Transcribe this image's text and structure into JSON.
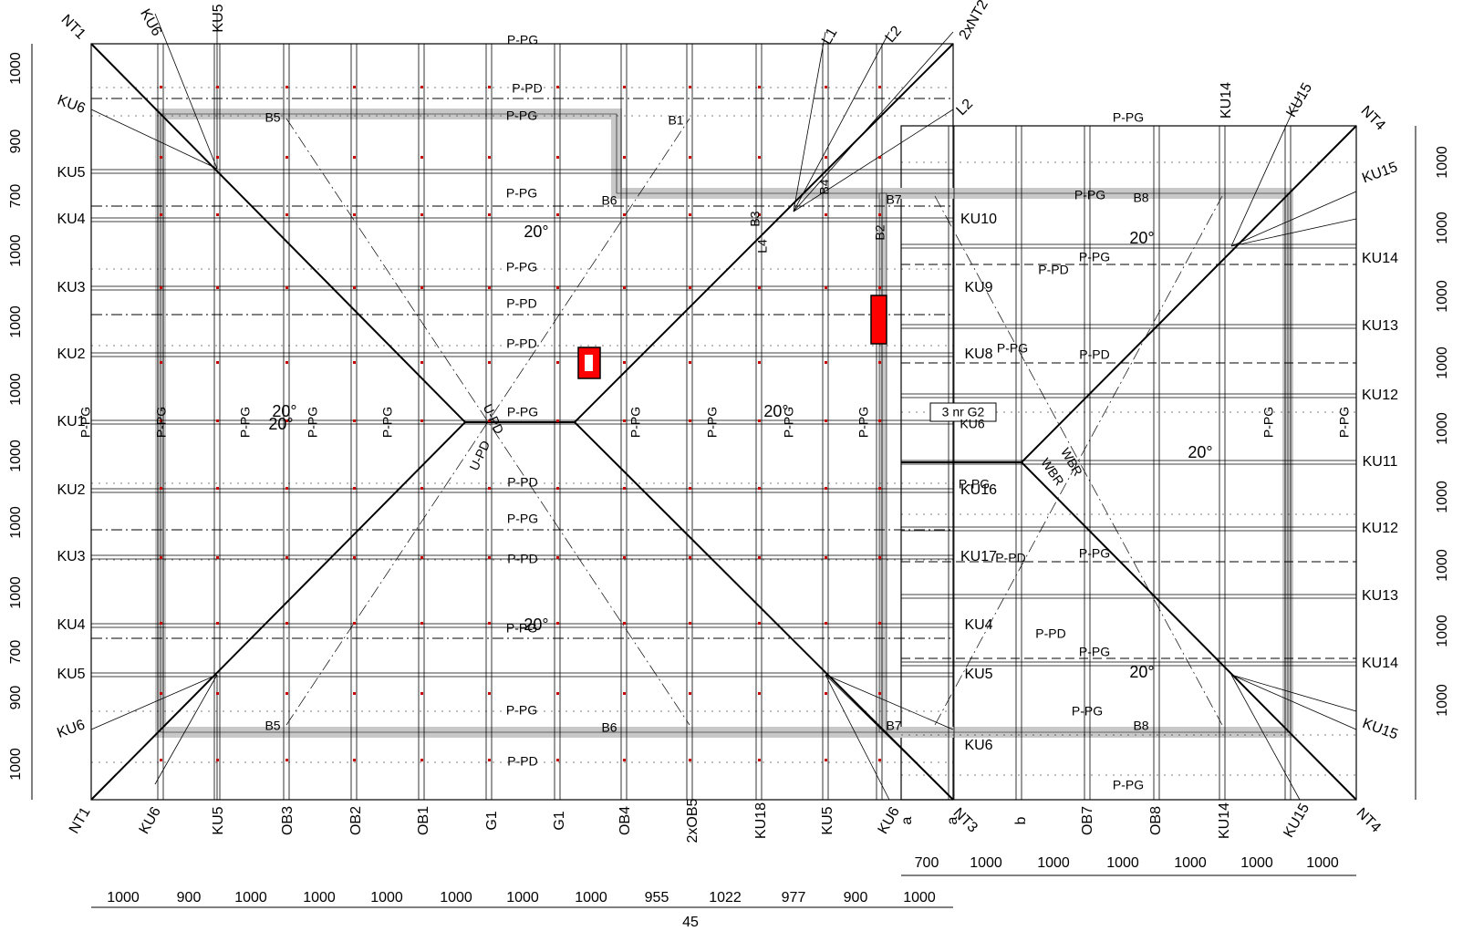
{
  "diagram": {
    "top_corner_labels": [
      "NT1",
      "KU6",
      "KU5",
      "L1",
      "L2",
      "2xNT2",
      "L2",
      "KU14",
      "KU15",
      "NT4"
    ],
    "left_side_labels": [
      "KU6",
      "KU5",
      "KU4",
      "KU3",
      "KU2",
      "KU1",
      "KU2",
      "KU3",
      "KU4",
      "KU5",
      "KU6"
    ],
    "left_block_right_labels": [
      "KU10",
      "KU9",
      "KU8",
      "KU16",
      "KU17",
      "KU4",
      "KU5",
      "KU6"
    ],
    "right_side_labels": [
      "KU15",
      "KU14",
      "KU13",
      "KU12",
      "KU11",
      "KU12",
      "KU13",
      "KU14",
      "KU15"
    ],
    "bottom_labels": [
      "NT1",
      "KU6",
      "KU5",
      "OB3",
      "OB2",
      "OB1",
      "G1",
      "G1",
      "OB4",
      "2xOB5",
      "KU18",
      "KU5",
      "KU6",
      "NT3",
      "a",
      "b",
      "OB7",
      "OB8",
      "KU14",
      "KU15",
      "NT4",
      "a"
    ],
    "batten_labels": [
      "P-PG",
      "P-PD",
      "P-PG",
      "P-PG",
      "P-PD",
      "P-PG",
      "P-PD",
      "P-PG",
      "P-PD",
      "P-PG",
      "P-PD",
      "P-PG",
      "P-PG",
      "P-PD",
      "P-PG",
      "P-PG",
      "P-PG",
      "P-PD",
      "P-PG",
      "P-PD",
      "P-PG",
      "P-PD",
      "P-PG",
      "P-PD",
      "P-PG",
      "P-PG",
      "P-PG"
    ],
    "beam_labels": [
      "B5",
      "B1",
      "B6",
      "B7",
      "B8",
      "B5",
      "B6",
      "B7",
      "B8",
      "B3",
      "B4",
      "B2",
      "L4"
    ],
    "ridge_labels": [
      "U-PD",
      "U-PD",
      "WBR",
      "WBR"
    ],
    "vertical_batten_labels": [
      "P-PG",
      "P-PG",
      "P-PG",
      "P-PG",
      "P-PG",
      "P-PG",
      "P-PG",
      "P-PG",
      "P-PG",
      "P-PG",
      "P-PG"
    ],
    "pitch_labels": [
      "20°",
      "20°",
      "20°",
      "20°",
      "20°",
      "20°",
      "20°",
      "20°"
    ],
    "callout": "3 nr  G2",
    "callout_sub": "KU6",
    "left_dims": [
      "1000",
      "900",
      "700",
      "1000",
      "1000",
      "1000",
      "1000",
      "1000",
      "1000",
      "700",
      "900",
      "1000"
    ],
    "right_dims": [
      "1000",
      "1000",
      "1000",
      "1000",
      "1000",
      "1000",
      "1000",
      "1000",
      "1000"
    ],
    "bottom_dims_upper": [
      "700",
      "1000",
      "1000",
      "1000",
      "1000",
      "1000",
      "1000"
    ],
    "bottom_dims_lower": [
      "1000",
      "900",
      "1000",
      "1000",
      "1000",
      "1000",
      "1000",
      "1000",
      "955",
      "1022",
      "977",
      "900",
      "1000"
    ],
    "bottom_dim_45": "45",
    "colors": {
      "line": "#000000",
      "eave_fill": "#c8c8c8",
      "chimney": "#ff0000",
      "marker": "#cc0000"
    }
  }
}
